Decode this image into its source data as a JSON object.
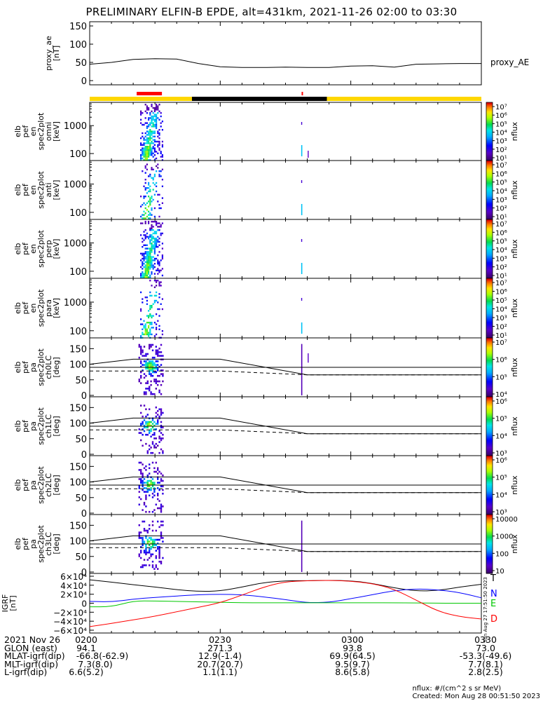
{
  "title": "PRELIMINARY ELFIN-B EPDE, alt=431km, 2021-11-26 02:00 to 03:30",
  "colors": {
    "flag_yellow": "#ffd700",
    "flag_black": "#000000",
    "flag_red": "#ff0000",
    "grf_T": "#000000",
    "grf_N": "#0000ff",
    "grf_E": "#00c800",
    "grf_D": "#ff0000"
  },
  "colormap": "rainbow (violet-blue-cyan-green-yellow-red)",
  "side_stamp": "Sun Aug 27 17:51:50 2023",
  "chart_data": [
    {
      "type": "line",
      "panel": "proxy_ae",
      "ylabel": [
        "proxy_ae",
        "[nT]"
      ],
      "ylim": [
        0,
        150
      ],
      "yticks": [
        "150",
        "100",
        "50",
        "0"
      ],
      "legend": "proxy_AE",
      "x_minutes": [
        0,
        5,
        10,
        15,
        20,
        25,
        30,
        35,
        40,
        45,
        50,
        55,
        60,
        65,
        70,
        75,
        80,
        85,
        90
      ],
      "values": [
        45,
        50,
        58,
        60,
        59,
        47,
        38,
        36,
        36,
        37,
        36,
        36,
        40,
        41,
        37,
        45,
        46,
        47,
        47
      ]
    },
    {
      "type": "heatmap",
      "panel": "elb_pef_en_spec2plot_omni",
      "ylabel": [
        "elb",
        "pef",
        "en",
        "spec2plot",
        "omni",
        "[keV]"
      ],
      "yscale": "log",
      "yticks": [
        "1000",
        "100"
      ],
      "colorbar_label": "nflux",
      "colorbar_ticks": [
        "10⁷",
        "10⁶",
        "10⁵",
        "10⁴",
        "10³",
        "10²",
        "10¹"
      ],
      "burst_minutes": [
        11.5,
        16.5
      ]
    },
    {
      "type": "heatmap",
      "panel": "elb_pef_en_spec2plot_anti",
      "ylabel": [
        "elb",
        "pef",
        "en",
        "spec2plot",
        "anti",
        "[keV]"
      ],
      "yscale": "log",
      "yticks": [
        "1000",
        "100"
      ],
      "colorbar_label": "nflux",
      "colorbar_ticks": [
        "10⁷",
        "10⁶",
        "10⁵",
        "10⁴",
        "10³",
        "10²",
        "10¹"
      ]
    },
    {
      "type": "heatmap",
      "panel": "elb_pef_en_spec2plot_perp",
      "ylabel": [
        "elb",
        "pef",
        "en",
        "spec2plot",
        "perp",
        "[keV]"
      ],
      "yscale": "log",
      "yticks": [
        "1000",
        "100"
      ],
      "colorbar_label": "nflux",
      "colorbar_ticks": [
        "10⁷",
        "10⁶",
        "10⁵",
        "10⁴",
        "10³",
        "10²",
        "10¹"
      ]
    },
    {
      "type": "heatmap",
      "panel": "elb_pef_en_spec2plot_para",
      "ylabel": [
        "elb",
        "pef",
        "en",
        "spec2plot",
        "para",
        "[keV]"
      ],
      "yscale": "log",
      "yticks": [
        "1000",
        "100"
      ],
      "colorbar_label": "nflux",
      "colorbar_ticks": [
        "10⁷",
        "10⁶",
        "10⁵",
        "10⁴",
        "10³",
        "10²",
        "10¹"
      ]
    },
    {
      "type": "heatmap",
      "panel": "elb_pef_pa_spec2plot_ch0LC",
      "ylabel": [
        "elb",
        "pef",
        "pa",
        "spec2plot",
        "ch0LC",
        "[deg]"
      ],
      "ylim": [
        0,
        180
      ],
      "yticks": [
        "150",
        "100",
        "50",
        "0"
      ],
      "colorbar_label": "nflux",
      "colorbar_ticks": [
        "10⁷",
        "10⁶",
        "10⁵",
        "10⁴"
      ],
      "lc_minutes": [
        0,
        10,
        30,
        50,
        90
      ],
      "lc_upper": [
        100,
        116,
        116,
        66,
        66
      ],
      "lc_lower_dashed": [
        78,
        78,
        78,
        66,
        66
      ],
      "lc_flat": [
        90,
        90,
        90,
        90,
        90
      ]
    },
    {
      "type": "heatmap",
      "panel": "elb_pef_pa_spec2plot_ch1LC",
      "ylabel": [
        "elb",
        "pef",
        "pa",
        "spec2plot",
        "ch1LC",
        "[deg]"
      ],
      "ylim": [
        0,
        180
      ],
      "yticks": [
        "150",
        "100",
        "50",
        "0"
      ],
      "colorbar_label": "nflux",
      "colorbar_ticks": [
        "10⁶",
        "10⁵",
        "10⁴",
        "10³"
      ]
    },
    {
      "type": "heatmap",
      "panel": "elb_pef_pa_spec2plot_ch2LC",
      "ylabel": [
        "elb",
        "pef",
        "pa",
        "spec2plot",
        "ch2LC",
        "[deg]"
      ],
      "ylim": [
        0,
        180
      ],
      "yticks": [
        "150",
        "100",
        "50",
        "0"
      ],
      "colorbar_label": "nflux",
      "colorbar_ticks": [
        "10⁶",
        "10⁵",
        "10⁴",
        "10³"
      ]
    },
    {
      "type": "heatmap",
      "panel": "elb_pef_pa_spec2plot_ch3LC",
      "ylabel": [
        "elb",
        "pef",
        "pa",
        "spec2plot",
        "ch3LC",
        "[deg]"
      ],
      "ylim": [
        0,
        180
      ],
      "yticks": [
        "150",
        "100",
        "50",
        "0"
      ],
      "colorbar_label": "nflux",
      "colorbar_ticks": [
        "10000",
        "1000",
        "100",
        "10"
      ]
    },
    {
      "type": "line",
      "panel": "IGRF",
      "ylabel": [
        "IGRF",
        "[nT]"
      ],
      "ylim": [
        -60000,
        60000
      ],
      "yticks": [
        "6×10⁴",
        "4×10⁴",
        "2×10⁴",
        "0",
        "−2×10⁴",
        "−4×10⁴",
        "−6×10⁴"
      ],
      "x_minutes": [
        0,
        5,
        10,
        15,
        20,
        25,
        30,
        35,
        40,
        45,
        50,
        55,
        60,
        65,
        70,
        75,
        80,
        85,
        90
      ],
      "series": [
        {
          "name": "T",
          "values": [
            52000,
            47000,
            41000,
            36000,
            30000,
            26000,
            27000,
            36000,
            46000,
            50000,
            50000,
            51000,
            50000,
            44000,
            34000,
            27000,
            28000,
            36000,
            42000
          ]
        },
        {
          "name": "N",
          "values": [
            4000,
            3000,
            9000,
            13000,
            16000,
            19000,
            20000,
            19000,
            14000,
            8000,
            1000,
            2000,
            10000,
            19000,
            28000,
            32000,
            30000,
            24000,
            12000
          ]
        },
        {
          "name": "E",
          "values": [
            -8000,
            -8000,
            5000,
            5000,
            4000,
            3000,
            2000,
            1000,
            1000,
            1000,
            1000,
            1000,
            1000,
            1000,
            1000,
            500,
            0,
            0,
            0
          ]
        },
        {
          "name": "D",
          "values": [
            -52000,
            -45000,
            -37000,
            -29000,
            -19000,
            -9000,
            1000,
            18000,
            36000,
            48000,
            50000,
            51000,
            49000,
            44000,
            31000,
            7000,
            -18000,
            -30000,
            -35000
          ]
        }
      ]
    }
  ],
  "x_axis": {
    "date_label": "2021 Nov 26",
    "ticks": [
      "0200",
      "0230",
      "0300",
      "0330"
    ]
  },
  "footer": {
    "rows": [
      {
        "label": "GLON (east)",
        "values": [
          "94.1",
          "271.3",
          "93.8",
          "73.0"
        ]
      },
      {
        "label": "MLAT-igrf(dip)",
        "values": [
          "-66.8(-62.9)",
          "12.9(-1.4)",
          "69.9(64.5)",
          "-53.3(-49.6)"
        ]
      },
      {
        "label": "MLT-igrf(dip)",
        "values": [
          "7.3(8.0)",
          "20.7(20.7)",
          "9.5(9.7)",
          "7.7(8.1)"
        ]
      },
      {
        "label": "L-igrf(dip)",
        "values": [
          "6.6(5.2)",
          "1.1(1.1)",
          "8.6(5.8)",
          "2.8(2.5)"
        ]
      }
    ],
    "units_note": "nflux: #/(cm^2 s sr MeV)",
    "created_note": "Created: Mon Aug 28 00:51:50 2023"
  }
}
